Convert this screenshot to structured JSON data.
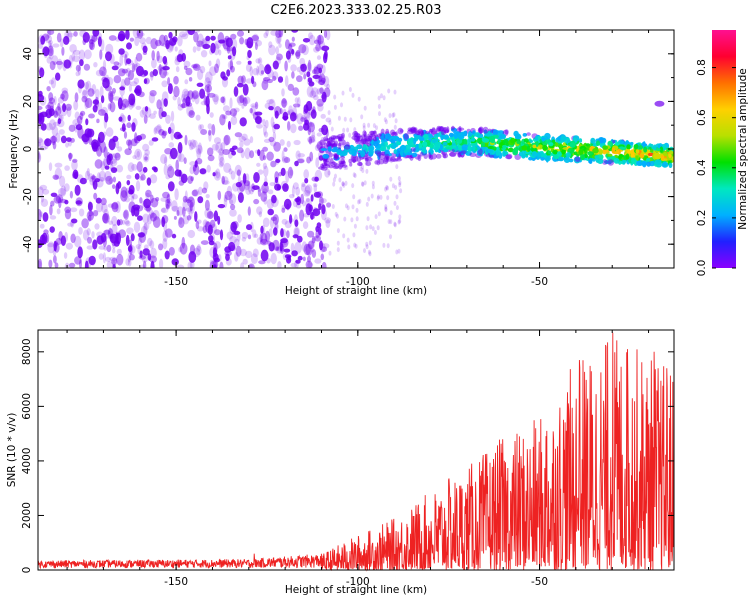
{
  "title": "C2E6.2023.333.02.25.R03",
  "colors": {
    "spectrogram_dark": "#7000f0",
    "snr_line": "#ee2222",
    "colorbar": [
      "#8a00ff",
      "#2020ff",
      "#00b0ff",
      "#00e8c0",
      "#00e000",
      "#b8e000",
      "#ffd000",
      "#ff7000",
      "#ff0030",
      "#ff1090"
    ]
  },
  "chart_data": [
    {
      "type": "heatmap",
      "title": "",
      "xlabel": "Height of straight line (km)",
      "ylabel": "Frequency (Hz)",
      "xlim": [
        -188,
        -13
      ],
      "ylim": [
        -50,
        50
      ],
      "xticks": [
        -150,
        -100,
        -50
      ],
      "yticks": [
        -40,
        -20,
        0,
        20,
        40
      ],
      "colorbar": {
        "label": "Normalized spectral amplitude",
        "range": [
          0.0,
          0.95
        ],
        "ticks": [
          0.0,
          0.2,
          0.4,
          0.6,
          0.8
        ]
      },
      "ridge": {
        "x_start": -110,
        "x_end": -13,
        "freq_start_hz": -2,
        "freq_end_hz": -3,
        "freq_peak_hz": 3,
        "peak_at_x": -70,
        "amplitude_start": 0.25,
        "amplitude_end": 0.9
      },
      "noise_region": {
        "x_start": -188,
        "x_end": -108
      },
      "isolated_feature": {
        "x": -17,
        "freq_hz": 19
      }
    },
    {
      "type": "line",
      "title": "",
      "xlabel": "Height of straight line (km)",
      "ylabel": "SNR (10 * v/v)",
      "xlim": [
        -188,
        -13
      ],
      "ylim": [
        0,
        8800
      ],
      "xticks": [
        -150,
        -100,
        -50
      ],
      "yticks": [
        0,
        2000,
        4000,
        6000,
        8000
      ],
      "series": [
        {
          "name": "",
          "envelope": {
            "x": [
              -188,
              -130,
              -110,
              -100,
              -90,
              -80,
              -70,
              -60,
              -50,
              -40,
              -30,
              -20,
              -13
            ],
            "upper_y": [
              350,
              400,
              600,
              1300,
              1900,
              2900,
              3800,
              4900,
              5600,
              7700,
              8700,
              8000,
              7400
            ],
            "baseline_y": [
              0,
              0,
              0,
              0,
              0,
              0,
              0,
              0,
              0,
              0,
              0,
              0,
              0
            ]
          },
          "spikes": [
            {
              "x": -128.5,
              "y": 600
            },
            {
              "x": -75,
              "y": 3300
            },
            {
              "x": -48,
              "y": 5100
            },
            {
              "x": -39,
              "y": 7700
            },
            {
              "x": -29.8,
              "y": 8700
            },
            {
              "x": -25.8,
              "y": 8100
            },
            {
              "x": -18.5,
              "y": 8000
            },
            {
              "x": -15,
              "y": 7400
            }
          ]
        }
      ]
    }
  ]
}
